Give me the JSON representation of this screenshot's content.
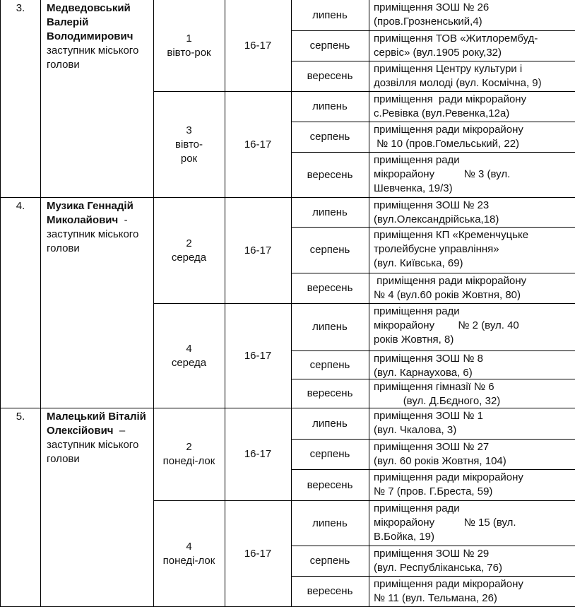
{
  "sections": [
    {
      "number": "3.",
      "name": "Медведовський Валерій Володимирович",
      "position": "заступник міського голови",
      "groups": [
        {
          "day": "1\nвівто-рок",
          "time": "16-17",
          "rows": [
            {
              "month": "липень",
              "place": "приміщення ЗОШ № 26\n(пров.Грозненський,4)"
            },
            {
              "month": "серпень",
              "place": "приміщення ТОВ «Житлорембуд-\nсервіс» (вул.1905 року,32)"
            },
            {
              "month": "вересень",
              "place": "приміщення Центру культури і\nдозвілля молоді (вул. Космічна, 9)"
            }
          ]
        },
        {
          "day": "3\nвівто-\nрок",
          "time": "16-17",
          "rows": [
            {
              "month": "липень",
              "place": "приміщення  ради мікрорайону\nс.Ревівка (вул.Ревенка,12а)"
            },
            {
              "month": "серпень",
              "place": "приміщення ради мікрорайону\n № 10 (пров.Гомельський, 22)"
            },
            {
              "month": "вересень",
              "place": "приміщення ради\nмікрорайону          № 3 (вул.\nШевченка, 19/3)"
            }
          ]
        }
      ]
    },
    {
      "number": "4.",
      "name": "Музика Геннадій Миколайович",
      "position": " - заступник міського голови",
      "groups": [
        {
          "day": "2\nсереда",
          "time": "16-17",
          "rows": [
            {
              "month": "липень",
              "place": "приміщення ЗОШ № 23\n(вул.Олександрійська,18)"
            },
            {
              "month": "серпень",
              "place": "приміщення КП «Кременчуцьке\nтролейбусне управління»\n(вул. Київська, 69)"
            },
            {
              "month": "вересень",
              "place": " приміщення ради мікрорайону\n№ 4 (вул.60 років Жовтня, 80)"
            }
          ]
        },
        {
          "day": "4\nсереда",
          "time": "16-17",
          "rows": [
            {
              "month": "липень",
              "place": "приміщення ради\nмікрорайону        № 2 (вул. 40\nроків Жовтня, 8)"
            },
            {
              "month": "серпень",
              "place": "приміщення ЗОШ № 8\n(вул. Карнаухова, 6)"
            },
            {
              "month": "вересень",
              "place": "приміщення гімназії № 6\n          (вул. Д.Бєдного, 32)"
            }
          ]
        }
      ]
    },
    {
      "number": "5.",
      "name": "Малецький Віталій Олексійович",
      "position": " – заступник міського голови",
      "groups": [
        {
          "day": "2\nпонеді-лок",
          "time": "16-17",
          "rows": [
            {
              "month": "липень",
              "place": "приміщення ЗОШ № 1\n(вул. Чкалова, 3)"
            },
            {
              "month": "серпень",
              "place": "приміщення ЗОШ № 27\n(вул. 60 років Жовтня, 104)"
            },
            {
              "month": "вересень",
              "place": "приміщення ради мікрорайону\n№ 7 (пров. Г.Бреста, 59)"
            }
          ]
        },
        {
          "day": "4\nпонеді-лок",
          "time": "16-17",
          "rows": [
            {
              "month": "липень",
              "place": "приміщення ради\nмікрорайону          № 15 (вул.\nВ.Бойка, 19)"
            },
            {
              "month": "серпень",
              "place": "приміщення ЗОШ № 29\n(вул. Республіканська, 76)"
            },
            {
              "month": "вересень",
              "place": "приміщення ради мікрорайону\n№ 11 (вул. Тельмана, 26)"
            }
          ]
        }
      ]
    }
  ]
}
